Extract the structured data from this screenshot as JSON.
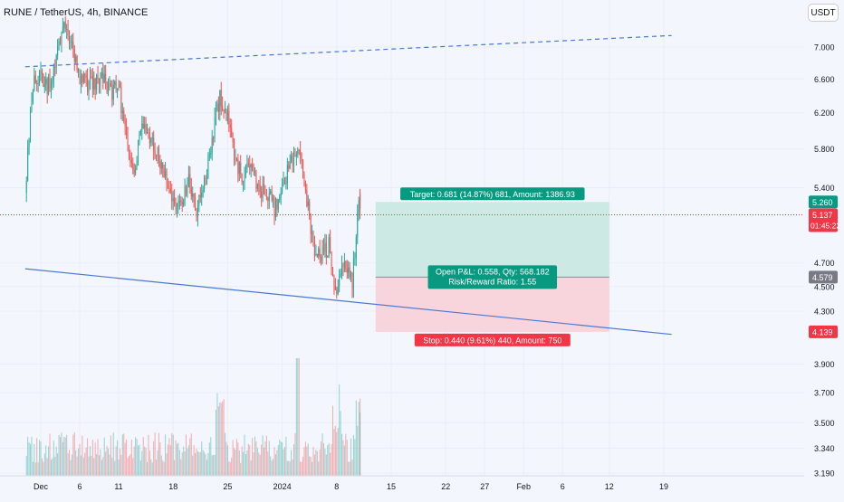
{
  "header": {
    "title": "RUNE / TetherUS, 4h, BINANCE",
    "currency_button": "USDT"
  },
  "colors": {
    "background": "#f3f6fd",
    "up": "#26a69a",
    "down": "#ef5350",
    "target_zone": "#cce9e4",
    "stop_zone": "#f8d4dc",
    "trendline": "#4a78d6"
  },
  "chart_data": {
    "type": "candlestick",
    "symbol": "RUNE / TetherUS",
    "interval": "4h",
    "exchange": "BINANCE",
    "y_axis": {
      "scale": "log",
      "range": [
        3.19,
        7.3
      ],
      "ticks": [
        "7.000",
        "6.600",
        "6.200",
        "5.800",
        "5.400",
        "4.700",
        "4.500",
        "4.300",
        "3.900",
        "3.700",
        "3.500",
        "3.340",
        "3.190"
      ]
    },
    "x_axis": {
      "ticks": [
        "Dec",
        "6",
        "11",
        "18",
        "25",
        "2024",
        "8",
        "15",
        "22",
        "27",
        "Feb",
        "6",
        "12",
        "19"
      ]
    },
    "candle_path": [
      [
        "Nov 29",
        5.35
      ],
      [
        "Nov 30",
        6.55
      ],
      [
        "Dec 1",
        6.65
      ],
      [
        "Dec 2",
        6.5
      ],
      [
        "Dec 4",
        7.25
      ],
      [
        "Dec 5",
        7.05
      ],
      [
        "Dec 6",
        6.55
      ],
      [
        "Dec 8",
        6.55
      ],
      [
        "Dec 9",
        6.6
      ],
      [
        "Dec 10",
        6.45
      ],
      [
        "Dec 11",
        6.5
      ],
      [
        "Dec 12",
        5.9
      ],
      [
        "Dec 13",
        5.6
      ],
      [
        "Dec 14",
        6.05
      ],
      [
        "Dec 16",
        5.75
      ],
      [
        "Dec 17",
        5.55
      ],
      [
        "Dec 18",
        5.25
      ],
      [
        "Dec 19",
        5.2
      ],
      [
        "Dec 20",
        5.45
      ],
      [
        "Dec 21",
        5.2
      ],
      [
        "Dec 22",
        5.4
      ],
      [
        "Dec 24",
        6.4
      ],
      [
        "Dec 25",
        6.15
      ],
      [
        "Dec 26",
        5.65
      ],
      [
        "Dec 27",
        5.5
      ],
      [
        "Dec 28",
        5.7
      ],
      [
        "Dec 29",
        5.35
      ],
      [
        "Dec 30",
        5.35
      ],
      [
        "Dec 31",
        5.2
      ],
      [
        "Jan 2",
        5.65
      ],
      [
        "Jan 3",
        5.85
      ],
      [
        "Jan 4",
        5.35
      ],
      [
        "Jan 5",
        4.85
      ],
      [
        "Jan 6",
        4.75
      ],
      [
        "Jan 7",
        4.85
      ],
      [
        "Jan 8",
        4.4
      ],
      [
        "Jan 9",
        4.75
      ],
      [
        "Jan 10",
        4.55
      ],
      [
        "Jan 11",
        5.35
      ],
      [
        "Jan 11",
        5.14
      ]
    ],
    "volume": {
      "max_day": "Jan 3",
      "spikes": [
        "Dec 24",
        "Jan 8",
        "Jan 11"
      ]
    },
    "last_price": 5.137,
    "countdown": "01:45:22",
    "price_labels": [
      {
        "value": "5.260",
        "color": "#089981"
      },
      {
        "value": "5.137",
        "color": "#f23645"
      },
      {
        "value": "4.579",
        "color": "#787b86"
      },
      {
        "value": "4.139",
        "color": "#f23645"
      }
    ],
    "position": {
      "type": "long",
      "entry": 4.579,
      "target": 5.26,
      "stop": 4.139,
      "start": "Jan 13",
      "end": "Feb 12",
      "target_label": "Target: 0.681 (14.87%) 681, Amount: 1386.93",
      "open_label": "Open P&L: 0.558, Qty: 568.182",
      "ratio_label": "Risk/Reward Ratio: 1.55",
      "stop_label": "Stop: 0.440 (9.61%) 440, Amount: 750"
    },
    "trendlines": [
      {
        "style": "dashed",
        "from": [
          "Nov 29",
          6.75
        ],
        "to": [
          "Feb 20",
          7.15
        ]
      },
      {
        "style": "solid",
        "from": [
          "Nov 29",
          4.65
        ],
        "to": [
          "Feb 20",
          4.12
        ]
      }
    ]
  }
}
